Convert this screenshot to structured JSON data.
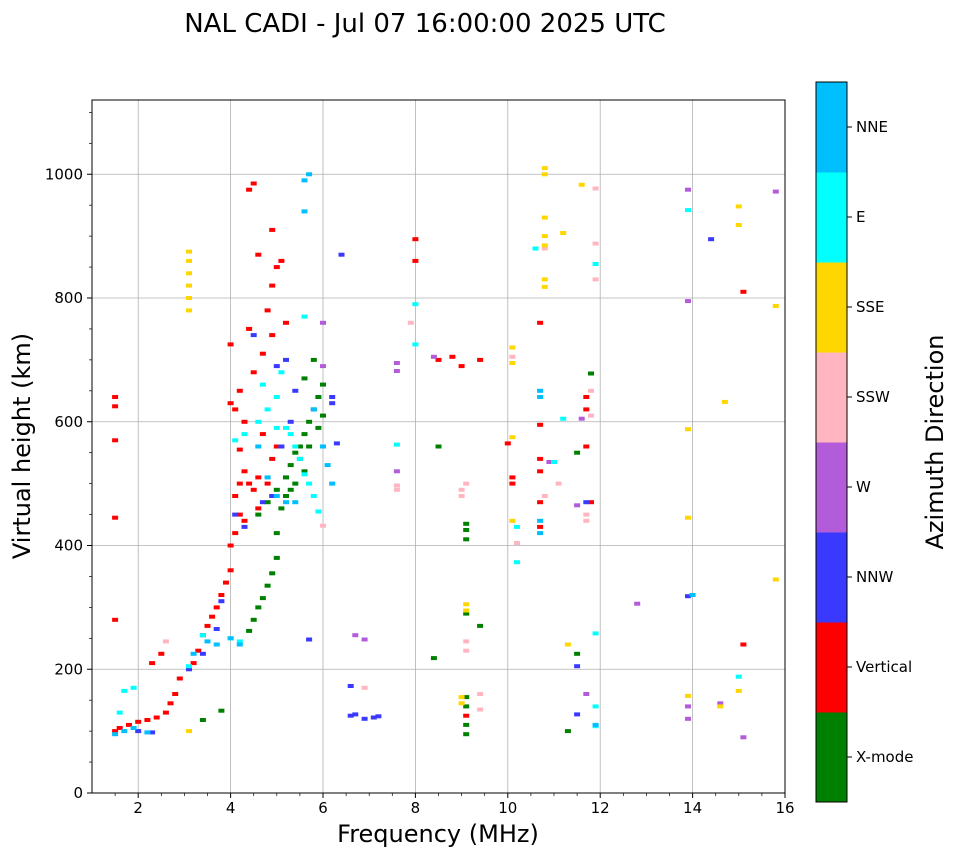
{
  "chart_data": {
    "type": "scatter",
    "title": "NAL CADI - Jul 07 16:00:00 2025 UTC",
    "xlabel": "Frequency (MHz)",
    "ylabel": "Virtual height (km)",
    "xlim": [
      1,
      16
    ],
    "ylim": [
      0,
      1120
    ],
    "xticks": [
      2,
      4,
      6,
      8,
      10,
      12,
      14,
      16
    ],
    "xtick_labels": [
      "2",
      "4",
      "6",
      "8",
      "10",
      "12",
      "14",
      "16"
    ],
    "yticks": [
      0,
      200,
      400,
      600,
      800,
      1000
    ],
    "ytick_labels": [
      "0",
      "200",
      "400",
      "600",
      "800",
      "1000"
    ],
    "grid": true,
    "colorbar": {
      "label": "Azimuth Direction",
      "categories": [
        {
          "name": "X-mode",
          "color": "#008000"
        },
        {
          "name": "Vertical",
          "color": "#ff0000"
        },
        {
          "name": "NNW",
          "color": "#3a3aff"
        },
        {
          "name": "W",
          "color": "#b35cd9"
        },
        {
          "name": "SSW",
          "color": "#ffb6c1"
        },
        {
          "name": "SSE",
          "color": "#ffd700"
        },
        {
          "name": "E",
          "color": "#00ffff"
        },
        {
          "name": "NNE",
          "color": "#00bfff"
        }
      ]
    },
    "series": [
      {
        "name": "X-mode",
        "points": [
          [
            3.4,
            118
          ],
          [
            3.8,
            133
          ],
          [
            4.4,
            262
          ],
          [
            4.5,
            280
          ],
          [
            4.6,
            300
          ],
          [
            4.7,
            315
          ],
          [
            4.8,
            335
          ],
          [
            4.9,
            355
          ],
          [
            5.0,
            380
          ],
          [
            4.6,
            450
          ],
          [
            4.8,
            470
          ],
          [
            5.0,
            490
          ],
          [
            5.2,
            510
          ],
          [
            5.3,
            530
          ],
          [
            5.4,
            550
          ],
          [
            5.5,
            560
          ],
          [
            5.6,
            580
          ],
          [
            5.7,
            600
          ],
          [
            5.8,
            620
          ],
          [
            5.9,
            640
          ],
          [
            6.0,
            660
          ],
          [
            5.2,
            480
          ],
          [
            5.4,
            500
          ],
          [
            5.6,
            520
          ],
          [
            5.5,
            540
          ],
          [
            5.3,
            490
          ],
          [
            5.7,
            560
          ],
          [
            5.9,
            590
          ],
          [
            5.1,
            460
          ],
          [
            5.6,
            670
          ],
          [
            5.8,
            700
          ],
          [
            9.1,
            95
          ],
          [
            9.1,
            110
          ],
          [
            9.1,
            140
          ],
          [
            9.1,
            155
          ],
          [
            9.1,
            410
          ],
          [
            9.1,
            425
          ],
          [
            9.1,
            435
          ],
          [
            8.4,
            218
          ],
          [
            8.5,
            560
          ],
          [
            9.1,
            290
          ],
          [
            11.5,
            550
          ],
          [
            11.5,
            225
          ],
          [
            11.8,
            678
          ],
          [
            9.4,
            270
          ],
          [
            11.3,
            100
          ],
          [
            6.0,
            610
          ],
          [
            5.0,
            420
          ]
        ]
      },
      {
        "name": "Vertical",
        "points": [
          [
            1.5,
            100
          ],
          [
            1.6,
            105
          ],
          [
            1.8,
            110
          ],
          [
            2.0,
            115
          ],
          [
            2.2,
            118
          ],
          [
            2.4,
            122
          ],
          [
            2.6,
            130
          ],
          [
            2.7,
            145
          ],
          [
            2.8,
            160
          ],
          [
            2.9,
            185
          ],
          [
            2.3,
            210
          ],
          [
            2.5,
            225
          ],
          [
            3.2,
            210
          ],
          [
            3.3,
            230
          ],
          [
            3.4,
            255
          ],
          [
            3.5,
            270
          ],
          [
            3.6,
            285
          ],
          [
            3.7,
            300
          ],
          [
            3.8,
            320
          ],
          [
            3.9,
            340
          ],
          [
            4.0,
            360
          ],
          [
            4.0,
            400
          ],
          [
            4.1,
            420
          ],
          [
            4.2,
            450
          ],
          [
            4.1,
            480
          ],
          [
            4.2,
            500
          ],
          [
            4.3,
            520
          ],
          [
            4.4,
            500
          ],
          [
            4.5,
            490
          ],
          [
            4.6,
            510
          ],
          [
            4.8,
            500
          ],
          [
            4.9,
            540
          ],
          [
            5.0,
            560
          ],
          [
            4.7,
            580
          ],
          [
            4.3,
            600
          ],
          [
            4.1,
            620
          ],
          [
            4.2,
            650
          ],
          [
            4.5,
            680
          ],
          [
            4.7,
            710
          ],
          [
            4.9,
            740
          ],
          [
            4.8,
            780
          ],
          [
            4.9,
            820
          ],
          [
            5.0,
            850
          ],
          [
            4.6,
            870
          ],
          [
            4.5,
            985
          ],
          [
            4.4,
            975
          ],
          [
            4.9,
            910
          ],
          [
            5.1,
            860
          ],
          [
            4.0,
            725
          ],
          [
            4.4,
            750
          ],
          [
            5.2,
            760
          ],
          [
            4.0,
            630
          ],
          [
            1.5,
            570
          ],
          [
            1.5,
            625
          ],
          [
            1.5,
            640
          ],
          [
            1.5,
            280
          ],
          [
            1.5,
            445
          ],
          [
            8.5,
            700
          ],
          [
            8.8,
            705
          ],
          [
            9.0,
            690
          ],
          [
            9.4,
            700
          ],
          [
            10.1,
            500
          ],
          [
            10.1,
            510
          ],
          [
            10.7,
            520
          ],
          [
            10.7,
            540
          ],
          [
            10.7,
            470
          ],
          [
            10.7,
            430
          ],
          [
            10.7,
            760
          ],
          [
            10.7,
            595
          ],
          [
            11.7,
            620
          ],
          [
            11.7,
            640
          ],
          [
            11.7,
            560
          ],
          [
            11.8,
            470
          ],
          [
            8.0,
            860
          ],
          [
            8.0,
            895
          ],
          [
            15.1,
            240
          ],
          [
            15.1,
            810
          ],
          [
            9.1,
            125
          ],
          [
            10.0,
            565
          ],
          [
            4.2,
            555
          ],
          [
            4.6,
            460
          ],
          [
            4.3,
            440
          ]
        ]
      },
      {
        "name": "NNW",
        "points": [
          [
            2.0,
            100
          ],
          [
            2.3,
            98
          ],
          [
            3.1,
            200
          ],
          [
            3.4,
            225
          ],
          [
            3.7,
            265
          ],
          [
            3.8,
            310
          ],
          [
            4.1,
            450
          ],
          [
            4.3,
            430
          ],
          [
            4.7,
            470
          ],
          [
            4.9,
            480
          ],
          [
            5.1,
            560
          ],
          [
            5.3,
            600
          ],
          [
            5.4,
            650
          ],
          [
            5.0,
            690
          ],
          [
            4.5,
            740
          ],
          [
            5.2,
            700
          ],
          [
            6.2,
            640
          ],
          [
            6.2,
            630
          ],
          [
            6.3,
            565
          ],
          [
            6.4,
            870
          ],
          [
            6.6,
            125
          ],
          [
            6.7,
            127
          ],
          [
            6.9,
            120
          ],
          [
            7.1,
            122
          ],
          [
            7.2,
            124
          ],
          [
            5.7,
            248
          ],
          [
            11.5,
            205
          ],
          [
            11.7,
            470
          ],
          [
            14.4,
            895
          ],
          [
            13.9,
            318
          ],
          [
            11.5,
            127
          ],
          [
            6.6,
            173
          ]
        ]
      },
      {
        "name": "W",
        "points": [
          [
            7.6,
            520
          ],
          [
            7.6,
            695
          ],
          [
            7.6,
            682
          ],
          [
            8.4,
            705
          ],
          [
            6.0,
            760
          ],
          [
            6.0,
            690
          ],
          [
            11.6,
            605
          ],
          [
            11.7,
            160
          ],
          [
            12.8,
            306
          ],
          [
            15.8,
            972
          ],
          [
            15.1,
            90
          ],
          [
            14.6,
            145
          ],
          [
            13.9,
            975
          ],
          [
            13.9,
            795
          ],
          [
            13.9,
            140
          ],
          [
            13.9,
            120
          ],
          [
            6.9,
            248
          ],
          [
            6.7,
            255
          ],
          [
            11.5,
            465
          ],
          [
            10.9,
            535
          ]
        ]
      },
      {
        "name": "SSW",
        "points": [
          [
            2.6,
            245
          ],
          [
            7.6,
            497
          ],
          [
            7.6,
            490
          ],
          [
            9.0,
            490
          ],
          [
            9.0,
            480
          ],
          [
            9.1,
            500
          ],
          [
            9.4,
            160
          ],
          [
            9.4,
            135
          ],
          [
            10.1,
            705
          ],
          [
            10.8,
            480
          ],
          [
            10.8,
            880
          ],
          [
            11.1,
            500
          ],
          [
            11.7,
            450
          ],
          [
            11.7,
            440
          ],
          [
            11.9,
            888
          ],
          [
            11.9,
            977
          ],
          [
            11.9,
            830
          ],
          [
            11.8,
            650
          ],
          [
            11.8,
            610
          ],
          [
            7.9,
            760
          ],
          [
            9.1,
            230
          ],
          [
            9.1,
            245
          ],
          [
            6.0,
            432
          ],
          [
            6.9,
            170
          ],
          [
            10.2,
            404
          ]
        ]
      },
      {
        "name": "SSE",
        "points": [
          [
            3.1,
            780
          ],
          [
            3.1,
            800
          ],
          [
            3.1,
            820
          ],
          [
            3.1,
            840
          ],
          [
            3.1,
            860
          ],
          [
            3.1,
            875
          ],
          [
            10.8,
            1000
          ],
          [
            10.8,
            1010
          ],
          [
            10.8,
            930
          ],
          [
            10.8,
            900
          ],
          [
            10.8,
            885
          ],
          [
            10.8,
            830
          ],
          [
            10.8,
            818
          ],
          [
            11.6,
            983
          ],
          [
            11.2,
            905
          ],
          [
            10.1,
            695
          ],
          [
            10.1,
            720
          ],
          [
            10.1,
            575
          ],
          [
            9.1,
            295
          ],
          [
            9.1,
            305
          ],
          [
            9.0,
            155
          ],
          [
            9.0,
            145
          ],
          [
            15.0,
            948
          ],
          [
            15.0,
            918
          ],
          [
            15.8,
            787
          ],
          [
            15.8,
            345
          ],
          [
            14.7,
            632
          ],
          [
            13.9,
            588
          ],
          [
            13.9,
            445
          ],
          [
            13.9,
            157
          ],
          [
            15.0,
            165
          ],
          [
            14.6,
            140
          ],
          [
            11.3,
            240
          ],
          [
            10.1,
            440
          ],
          [
            3.1,
            100
          ]
        ]
      },
      {
        "name": "E",
        "points": [
          [
            1.6,
            130
          ],
          [
            1.7,
            165
          ],
          [
            1.9,
            170
          ],
          [
            3.1,
            205
          ],
          [
            3.4,
            255
          ],
          [
            4.0,
            250
          ],
          [
            4.2,
            245
          ],
          [
            4.1,
            570
          ],
          [
            4.3,
            580
          ],
          [
            4.6,
            600
          ],
          [
            4.8,
            620
          ],
          [
            5.0,
            590
          ],
          [
            5.3,
            580
          ],
          [
            5.4,
            560
          ],
          [
            5.5,
            540
          ],
          [
            5.6,
            515
          ],
          [
            5.7,
            500
          ],
          [
            5.8,
            480
          ],
          [
            5.9,
            455
          ],
          [
            5.2,
            590
          ],
          [
            5.0,
            640
          ],
          [
            4.7,
            660
          ],
          [
            5.1,
            680
          ],
          [
            5.6,
            770
          ],
          [
            7.6,
            563
          ],
          [
            8.0,
            725
          ],
          [
            8.0,
            790
          ],
          [
            10.2,
            430
          ],
          [
            10.2,
            373
          ],
          [
            11.0,
            535
          ],
          [
            11.2,
            605
          ],
          [
            11.9,
            855
          ],
          [
            11.9,
            140
          ],
          [
            11.9,
            108
          ],
          [
            11.9,
            258
          ],
          [
            13.9,
            942
          ],
          [
            15.0,
            188
          ],
          [
            10.6,
            880
          ]
        ]
      },
      {
        "name": "NNE",
        "points": [
          [
            1.5,
            95
          ],
          [
            1.7,
            100
          ],
          [
            1.9,
            105
          ],
          [
            2.2,
            98
          ],
          [
            3.2,
            225
          ],
          [
            3.5,
            245
          ],
          [
            3.7,
            240
          ],
          [
            4.0,
            250
          ],
          [
            4.2,
            240
          ],
          [
            4.6,
            560
          ],
          [
            4.8,
            510
          ],
          [
            5.2,
            470
          ],
          [
            5.4,
            470
          ],
          [
            5.0,
            480
          ],
          [
            5.6,
            990
          ],
          [
            5.7,
            1000
          ],
          [
            5.6,
            940
          ],
          [
            5.8,
            620
          ],
          [
            6.0,
            560
          ],
          [
            6.1,
            530
          ],
          [
            6.2,
            500
          ],
          [
            10.7,
            420
          ],
          [
            10.7,
            440
          ],
          [
            10.7,
            650
          ],
          [
            10.7,
            640
          ],
          [
            11.9,
            110
          ],
          [
            14.0,
            320
          ]
        ]
      }
    ]
  }
}
